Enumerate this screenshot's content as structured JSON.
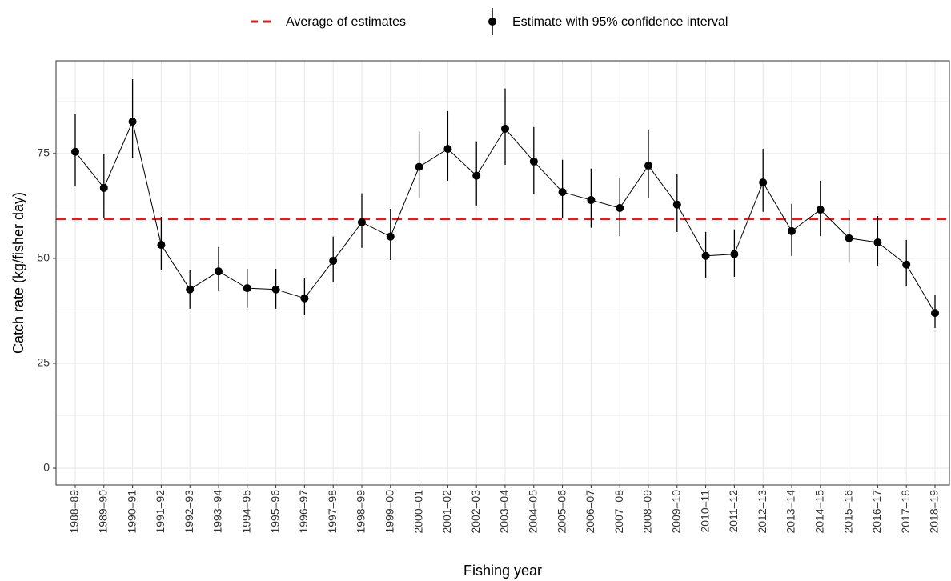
{
  "chart_data": {
    "type": "errorbar-line",
    "legend": [
      "Average of estimates",
      "Estimate with 95% confidence interval"
    ],
    "x_label": "Fishing year",
    "y_label": "Catch rate (kg/fisher day)",
    "categories": [
      "1988–89",
      "1989–90",
      "1990–91",
      "1991–92",
      "1992–93",
      "1993–94",
      "1994–95",
      "1995–96",
      "1996–97",
      "1997–98",
      "1998–99",
      "1999–00",
      "2000–01",
      "2001–02",
      "2002–03",
      "2003–04",
      "2004–05",
      "2005–06",
      "2006–07",
      "2007–08",
      "2008–09",
      "2009–10",
      "2010–11",
      "2011–12",
      "2012–13",
      "2013–14",
      "2014–15",
      "2015–16",
      "2016–17",
      "2017–18",
      "2018–19"
    ],
    "values": [
      75.4,
      66.8,
      82.6,
      53.2,
      42.6,
      46.9,
      42.9,
      42.6,
      40.5,
      49.4,
      58.6,
      55.2,
      71.8,
      76.1,
      69.7,
      80.9,
      73.1,
      65.8,
      63.9,
      62.0,
      72.1,
      62.8,
      50.6,
      51.0,
      68.1,
      56.5,
      61.6,
      54.8,
      53.8,
      48.5,
      37.0
    ],
    "lower": [
      67.2,
      59.5,
      73.9,
      47.3,
      38.0,
      42.4,
      38.2,
      38.0,
      36.6,
      44.3,
      52.5,
      49.6,
      64.3,
      68.5,
      62.6,
      72.3,
      65.3,
      59.7,
      57.3,
      55.3,
      64.3,
      56.3,
      45.2,
      45.6,
      61.1,
      50.6,
      55.3,
      49.0,
      48.3,
      43.5,
      33.4
    ],
    "upper": [
      84.4,
      74.8,
      92.7,
      59.9,
      47.3,
      52.7,
      47.5,
      47.5,
      45.4,
      55.2,
      65.5,
      61.8,
      80.2,
      85.1,
      77.9,
      90.5,
      81.3,
      73.5,
      71.4,
      69.1,
      80.5,
      70.2,
      56.3,
      56.9,
      76.1,
      63.0,
      68.5,
      61.5,
      60.1,
      54.4,
      41.4
    ],
    "average": 59.4,
    "color": "#000000",
    "average_color": "#e41a1c",
    "ylim": [
      -4,
      97.1
    ],
    "yticks": [
      0,
      25,
      50,
      75
    ],
    "grid": true,
    "legend_position": "top"
  }
}
